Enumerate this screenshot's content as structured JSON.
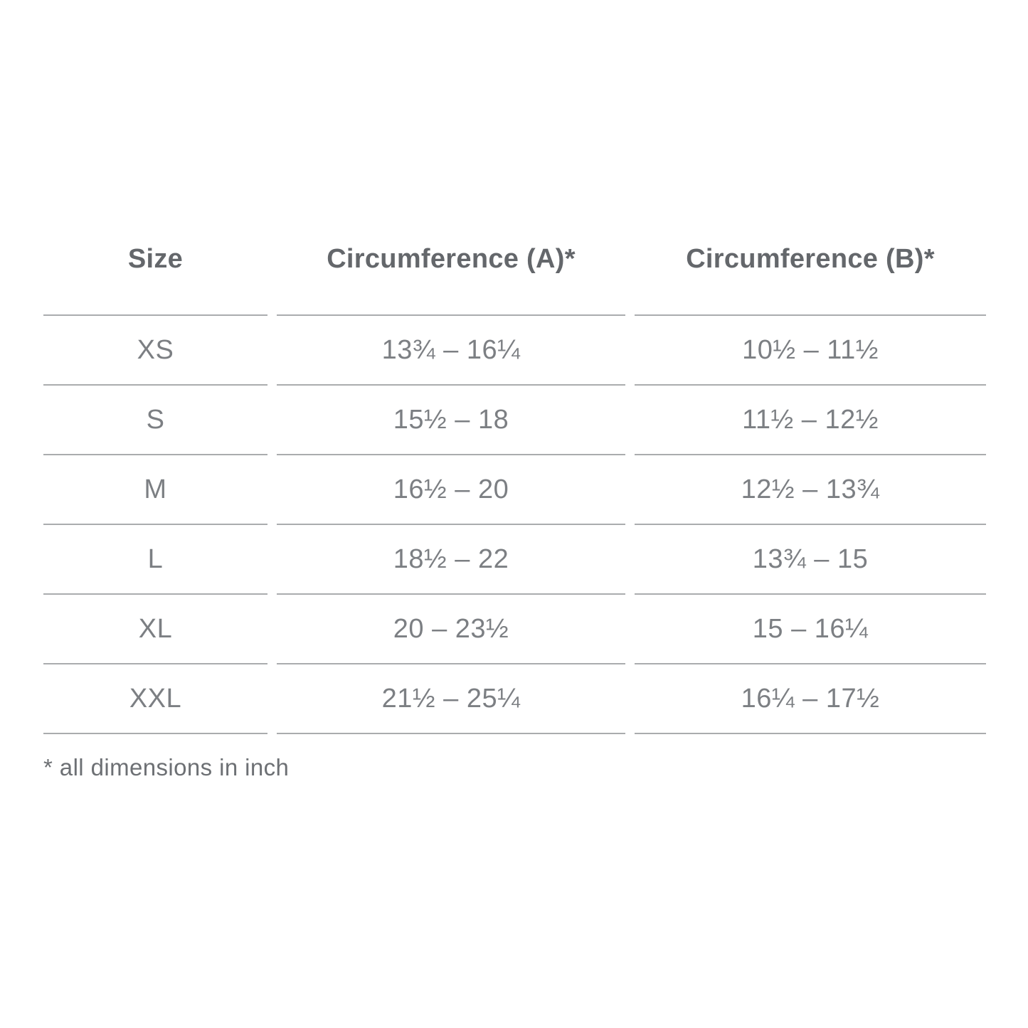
{
  "chart_data": {
    "type": "table",
    "title": "",
    "columns": [
      "Size",
      "Circumference (A)*",
      "Circumference (B)*"
    ],
    "rows": [
      [
        "XS",
        "13¾ – 16¼",
        "10½ – 11½"
      ],
      [
        "S",
        "15½ – 18",
        "11½ – 12½"
      ],
      [
        "M",
        "16½ – 20",
        "12½ – 13¾"
      ],
      [
        "L",
        "18½ – 22",
        "13¾ – 15"
      ],
      [
        "XL",
        "20 – 23½",
        "15 – 16¼"
      ],
      [
        "XXL",
        "21½ – 25¼",
        "16¼ – 17½"
      ]
    ],
    "footnote": "* all dimensions in inch",
    "layout": {
      "grid": "horizontal-rules-only",
      "column_alignment": "center",
      "header_style": "bold"
    },
    "colors": {
      "background": "#ffffff",
      "header_text": "#64676b",
      "body_text": "#7c7f83",
      "rule": "#aaacae"
    }
  }
}
